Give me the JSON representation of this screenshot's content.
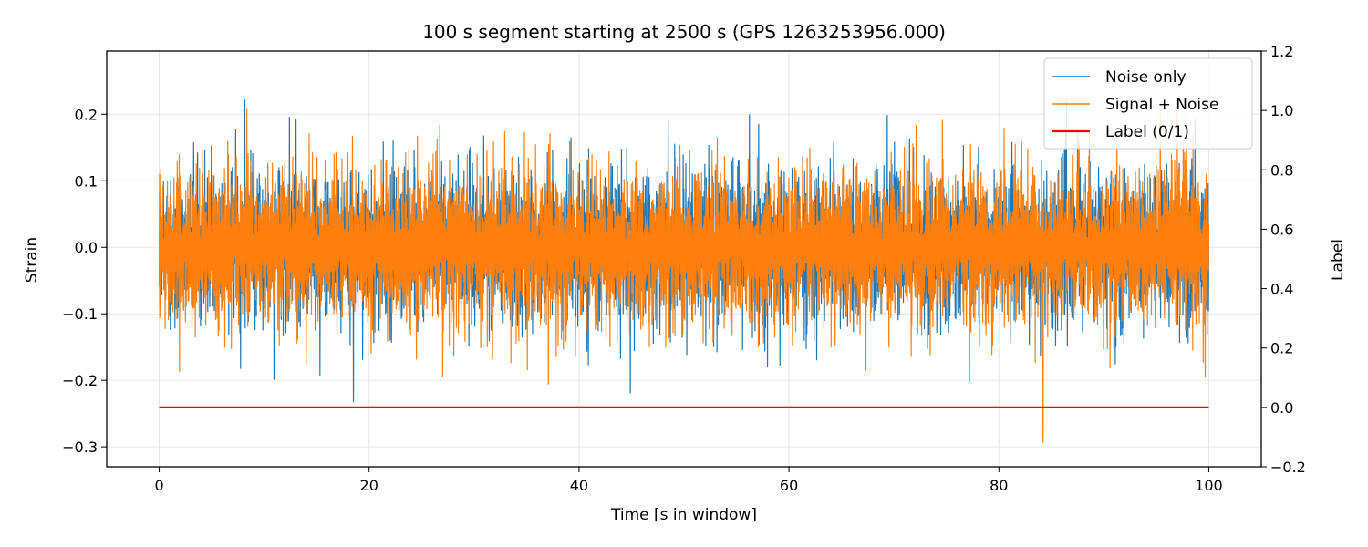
{
  "chart_data": {
    "type": "line",
    "title": "100 s segment starting at 2500 s (GPS 1263253956.000)",
    "xlabel": "Time [s in window]",
    "ylabel": "Strain",
    "y2label": "Label",
    "xlim": [
      -5,
      105
    ],
    "ylim": [
      -0.33,
      0.295
    ],
    "y2lim": [
      -0.2,
      1.2
    ],
    "x_ticks": [
      0,
      20,
      40,
      60,
      80,
      100
    ],
    "x_tick_labels": [
      "0",
      "20",
      "40",
      "60",
      "80",
      "100"
    ],
    "y_ticks": [
      -0.3,
      -0.2,
      -0.1,
      0.0,
      0.1,
      0.2
    ],
    "y_tick_labels": [
      "−0.3",
      "−0.2",
      "−0.1",
      "0.0",
      "0.1",
      "0.2"
    ],
    "y2_ticks": [
      -0.2,
      0.0,
      0.2,
      0.4,
      0.6,
      0.8,
      1.0,
      1.2
    ],
    "y2_tick_labels": [
      "−0.2",
      "0.0",
      "0.2",
      "0.4",
      "0.6",
      "0.8",
      "1.0",
      "1.2"
    ],
    "grid": true,
    "legend_position": "top-right",
    "legend": [
      "Noise only",
      "Signal + Noise",
      "Label (0/1)"
    ],
    "series": [
      {
        "name": "Noise only",
        "color": "#1f77b4",
        "axis": "left",
        "x_range": [
          0,
          100
        ],
        "typical_amplitude": 0.1,
        "peak_range": [
          -0.27,
          0.23
        ]
      },
      {
        "name": "Signal + Noise",
        "color": "#ff7f0e",
        "axis": "left",
        "x_range": [
          0,
          100
        ],
        "typical_amplitude": 0.1,
        "peak_range": [
          -0.3,
          0.27
        ]
      },
      {
        "name": "Label (0/1)",
        "color": "#ff0000",
        "axis": "right",
        "x": [
          0,
          100
        ],
        "values": [
          0,
          0
        ]
      }
    ]
  }
}
